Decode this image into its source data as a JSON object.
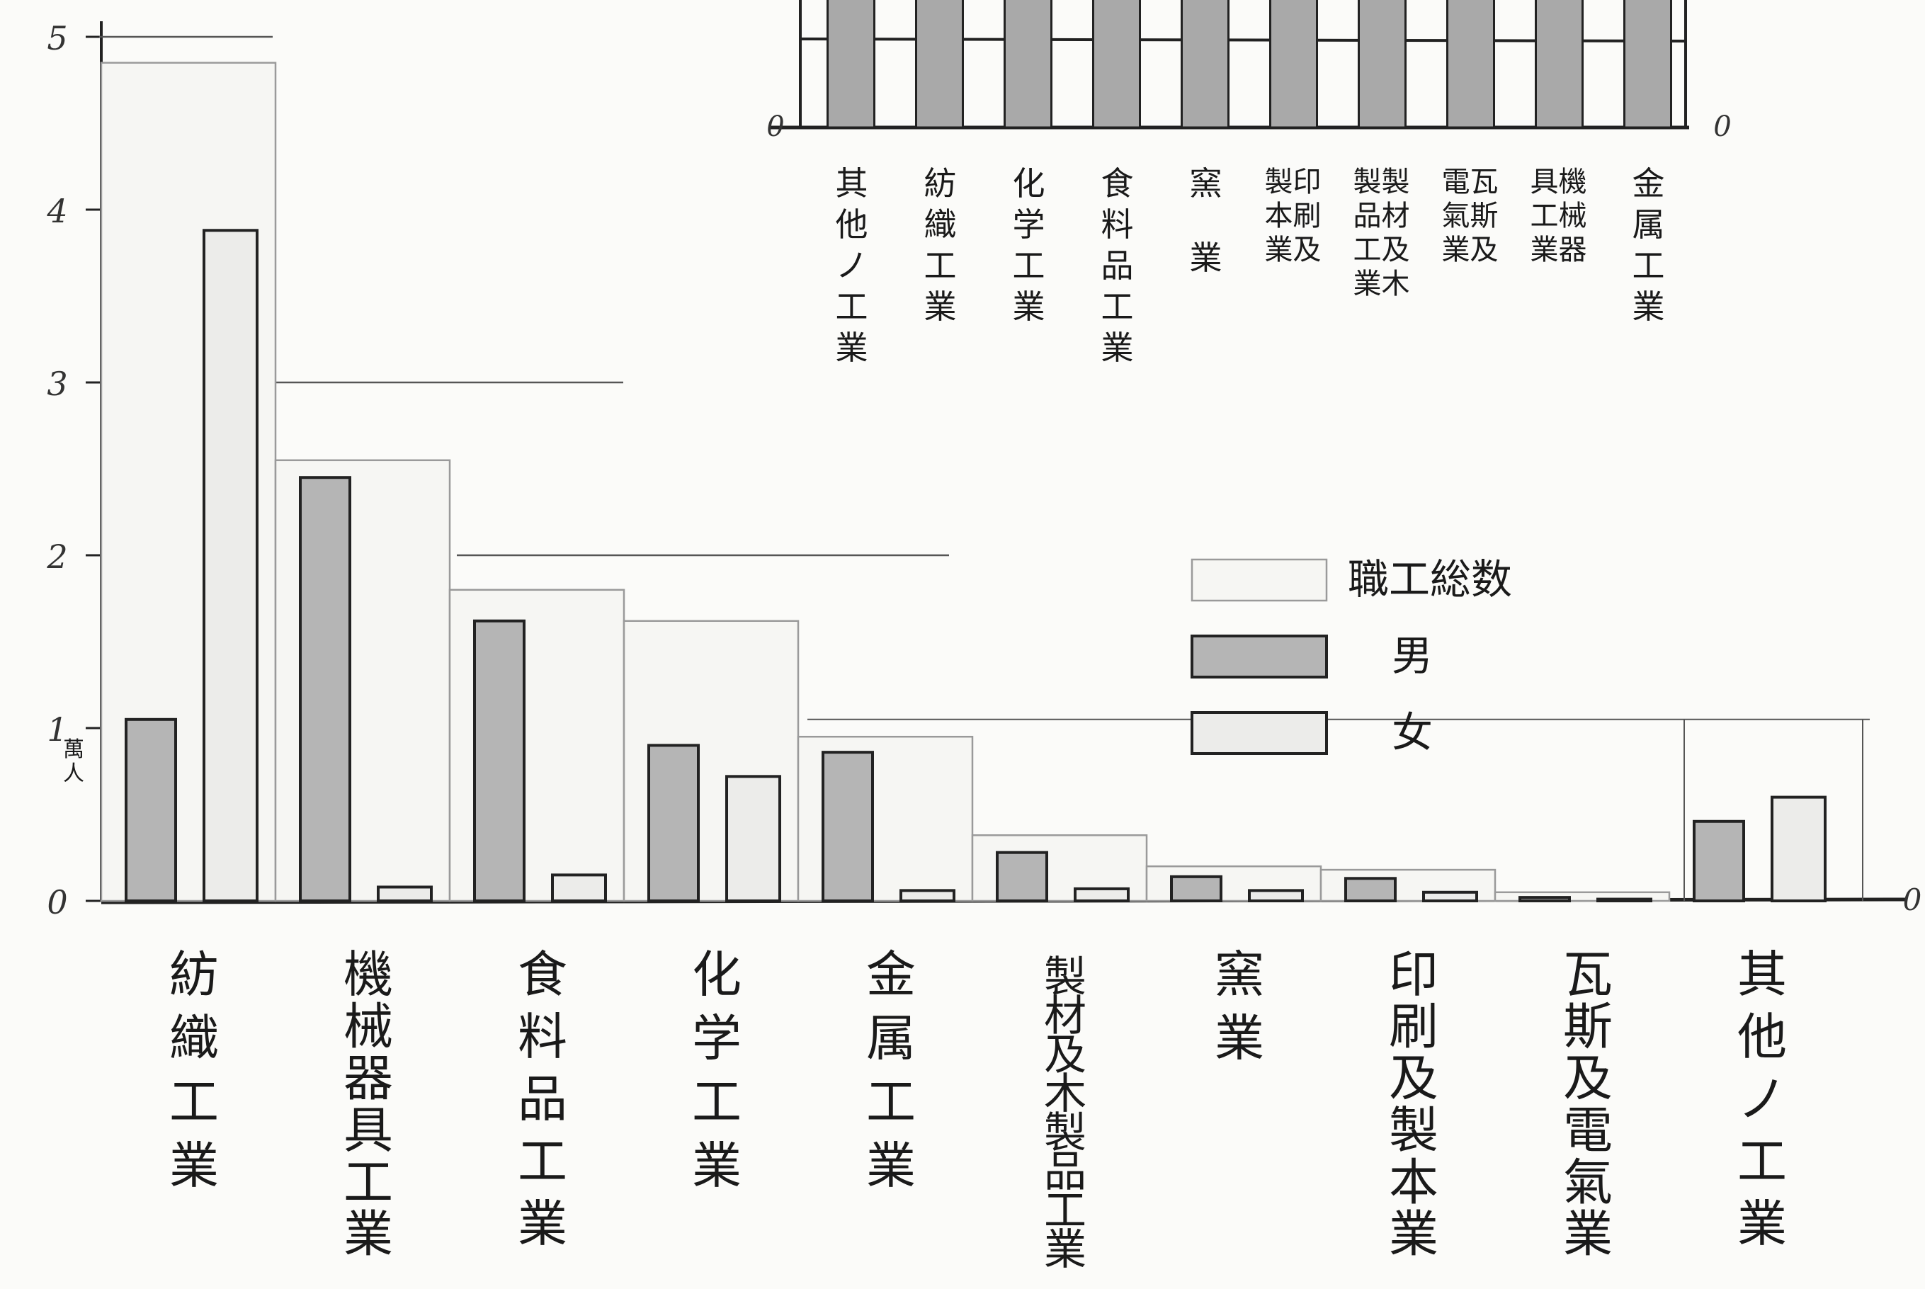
{
  "chart_data": [
    {
      "type": "bar",
      "title": "",
      "ylabel": "萬人",
      "ylim": [
        0,
        5
      ],
      "yticks": [
        "0",
        "1",
        "2",
        "3",
        "4",
        "5"
      ],
      "categories": [
        "紡織工業",
        "機械器具工業",
        "食料品工業",
        "化学工業",
        "金属工業",
        "製材及木製品工業",
        "窯業",
        "印刷及製本業",
        "瓦斯及電氣業",
        "其他ノ工業"
      ],
      "series": [
        {
          "name": "職工総数",
          "values": [
            4.85,
            2.55,
            1.8,
            1.62,
            0.95,
            0.38,
            0.2,
            0.18,
            0.05,
            1.05
          ]
        },
        {
          "name": "男",
          "values": [
            1.05,
            2.45,
            1.62,
            0.9,
            0.86,
            0.28,
            0.14,
            0.13,
            0.02,
            0.46
          ]
        },
        {
          "name": "女",
          "values": [
            3.88,
            0.08,
            0.15,
            0.72,
            0.06,
            0.07,
            0.06,
            0.05,
            0.01,
            0.6
          ]
        }
      ],
      "legend": {
        "placement": "center-right",
        "items": [
          {
            "label": "職工総数",
            "color": "#f6f6f3"
          },
          {
            "label": "男",
            "color": "#b5b5b5"
          },
          {
            "label": "女",
            "color": "#ececea"
          }
        ]
      },
      "colors": {
        "total": "#f6f6f3",
        "male": "#b5b5b5",
        "female": "#ececea",
        "stroke": "#222222"
      }
    },
    {
      "type": "bar",
      "title": "",
      "yticks_left": [
        "0"
      ],
      "yticks_right": [
        "0"
      ],
      "categories": [
        "其他ノ工業",
        "紡織工業",
        "化学工業",
        "食料品工業",
        "窯業",
        "印刷及製本業",
        "製材及木製品工業",
        "瓦斯及電氣業",
        "機械器具工業",
        "金属工業"
      ],
      "note": "partial inset chart (top cropped)"
    }
  ]
}
